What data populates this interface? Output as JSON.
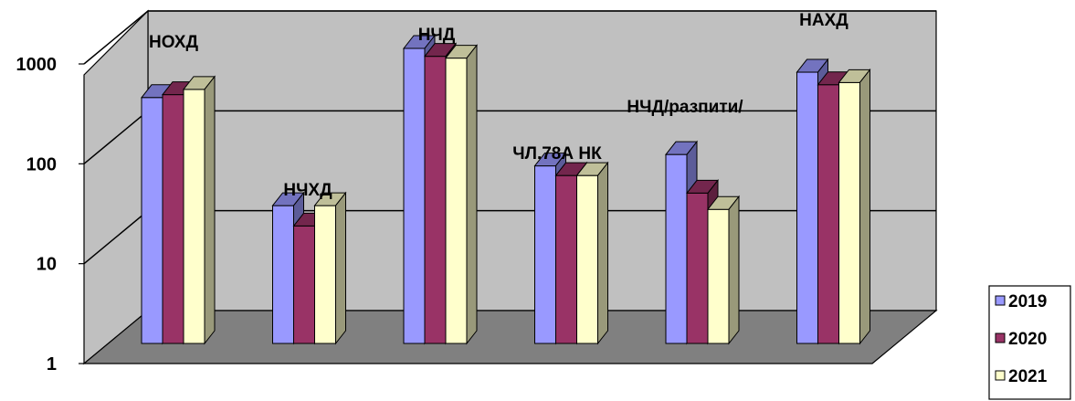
{
  "chart_data": {
    "type": "bar",
    "variant": "3d-clustered-column",
    "y_scale": "log",
    "ylim": [
      1,
      1000
    ],
    "y_ticks": [
      "1",
      "10",
      "100",
      "1000"
    ],
    "grid": true,
    "legend_position": "right",
    "categories": [
      "НОХД",
      "НЧХД",
      "НЧД",
      "ЧЛ.78А НК",
      "НЧД/разпити/",
      "НАХД"
    ],
    "series": [
      {
        "name": "2019",
        "color": "#9999FF",
        "values": [
          290,
          24,
          900,
          60,
          78,
          520
        ]
      },
      {
        "name": "2020",
        "color": "#993366",
        "values": [
          310,
          15,
          750,
          48,
          32,
          390
        ]
      },
      {
        "name": "2021",
        "color": "#FFFFCC",
        "values": [
          350,
          24,
          720,
          48,
          22,
          410
        ]
      }
    ]
  },
  "colors": {
    "back_wall": "#C0C0C0",
    "side_wall": "#C0C0C0",
    "floor": "#808080",
    "grid": "#000000"
  }
}
